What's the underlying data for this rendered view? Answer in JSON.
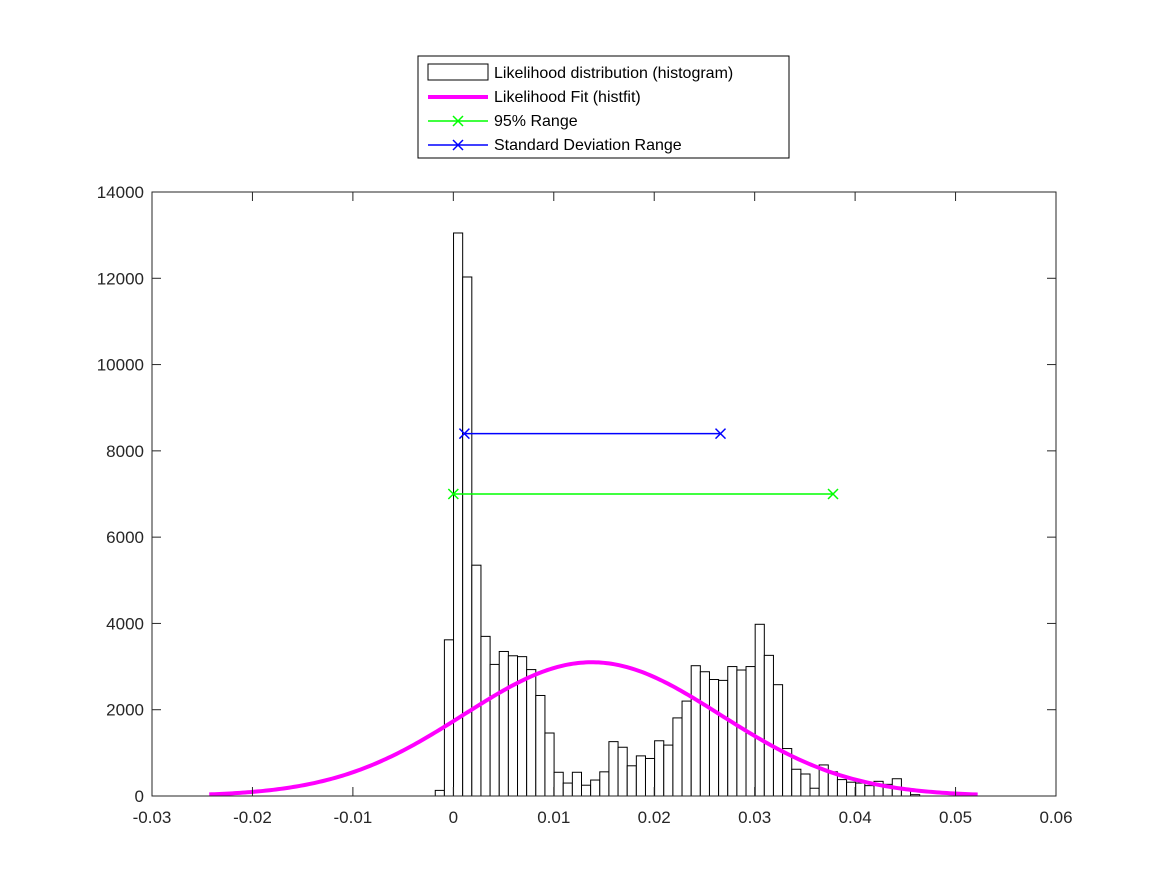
{
  "chart_data": {
    "type": "bar",
    "title": "",
    "xlabel": "",
    "ylabel": "",
    "xlim": [
      -0.03,
      0.06
    ],
    "ylim": [
      0,
      14000
    ],
    "xticks": [
      -0.03,
      -0.02,
      -0.01,
      0,
      0.01,
      0.02,
      0.03,
      0.04,
      0.05,
      0.06
    ],
    "xtick_labels": [
      "-0.03",
      "-0.02",
      "-0.01",
      "0",
      "0.01",
      "0.02",
      "0.03",
      "0.04",
      "0.05",
      "0.06"
    ],
    "yticks": [
      0,
      2000,
      4000,
      6000,
      8000,
      10000,
      12000,
      14000
    ],
    "ytick_labels": [
      "0",
      "2000",
      "4000",
      "6000",
      "8000",
      "10000",
      "12000",
      "14000"
    ],
    "grid": false,
    "legend_position": "north-outside",
    "histogram": {
      "name": "Likelihood distribution (histogram)",
      "bin_start": -0.0018,
      "bin_width": 0.00091,
      "counts": [
        130,
        3620,
        13050,
        12030,
        5350,
        3700,
        3050,
        3350,
        3250,
        3230,
        2930,
        2330,
        1460,
        550,
        300,
        550,
        250,
        370,
        560,
        1260,
        1130,
        700,
        930,
        870,
        1280,
        1180,
        1810,
        2200,
        3020,
        2880,
        2700,
        2680,
        3000,
        2920,
        3000,
        3980,
        3260,
        2580,
        1100,
        620,
        510,
        180,
        720,
        560,
        380,
        320,
        300,
        240,
        340,
        270,
        400,
        150,
        30
      ],
      "fill": "#ffffff",
      "stroke": "#000000"
    },
    "fit": {
      "name": "Likelihood Fit (histfit)",
      "type": "normal",
      "mean": 0.0138,
      "std": 0.0128,
      "peak": 3100,
      "x_range": [
        -0.0243,
        0.0522
      ],
      "color": "#ff00ff"
    },
    "ranges": [
      {
        "name": "95% Range",
        "x": [
          0.0,
          0.0378
        ],
        "y": 7000,
        "color": "#00ff00"
      },
      {
        "name": "Standard Deviation Range",
        "x": [
          0.0011,
          0.0266
        ],
        "y": 8400,
        "color": "#0000ff"
      }
    ]
  }
}
